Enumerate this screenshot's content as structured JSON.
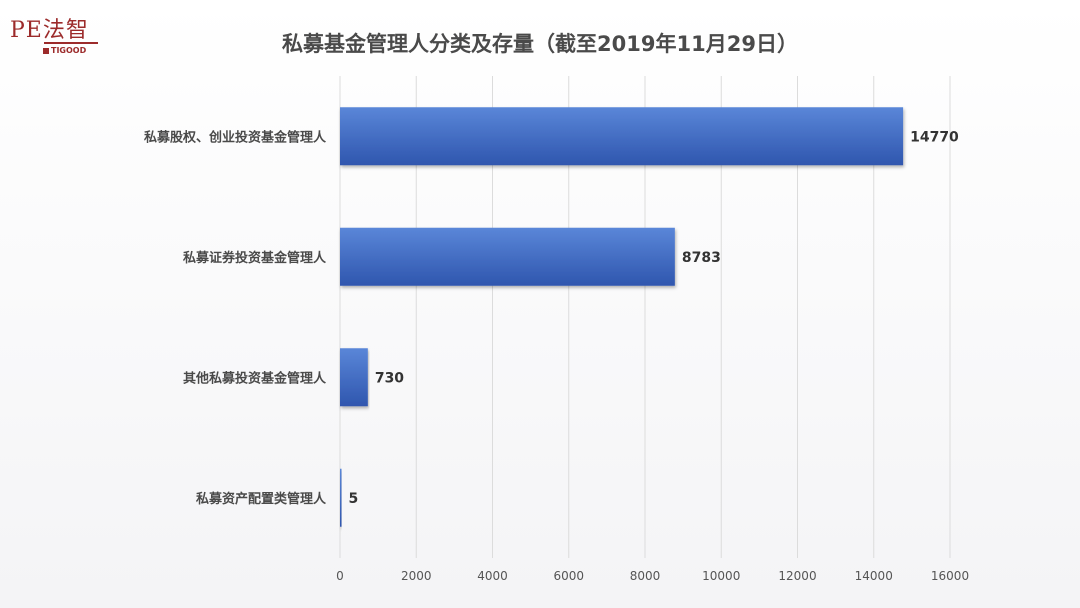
{
  "logo": {
    "text": "PE法智",
    "sub": "TIGOOD"
  },
  "chart_data": {
    "type": "bar",
    "orientation": "horizontal",
    "title": "私募基金管理人分类及存量（截至2019年11月29日）",
    "categories": [
      "私募股权、创业投资基金管理人",
      "私募证券投资基金管理人",
      "其他私募投资基金管理人",
      "私募资产配置类管理人"
    ],
    "values": [
      14770,
      8783,
      730,
      5
    ],
    "data_labels": [
      "14770",
      "8783",
      "730",
      "5"
    ],
    "xlim": [
      0,
      16000
    ],
    "xticks": [
      "0",
      "2000",
      "4000",
      "6000",
      "8000",
      "10000",
      "12000",
      "14000",
      "16000"
    ],
    "grid": true,
    "bar_color": "#3a65c0"
  }
}
